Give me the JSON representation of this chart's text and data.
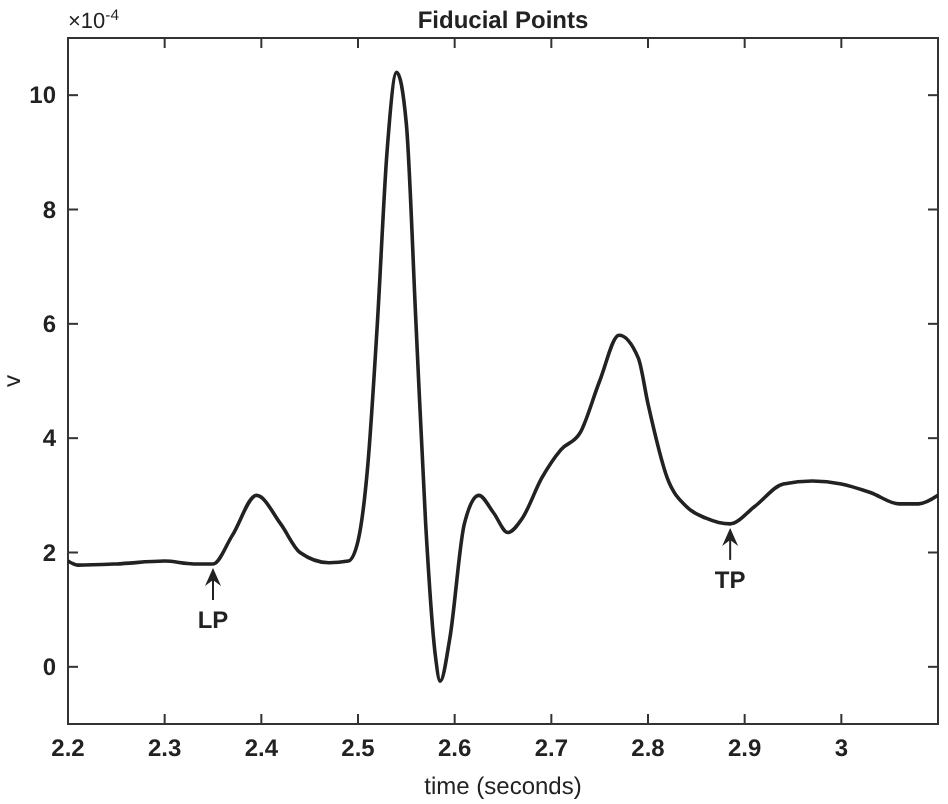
{
  "chart_data": {
    "type": "line",
    "title": "Fiducial Points",
    "xlabel": "time (seconds)",
    "ylabel": "v",
    "annotations": [
      "×10$^{-4}$",
      {
        "text": "LP",
        "x": 2.35,
        "y": 1.8
      },
      {
        "text": "TP",
        "x": 2.885,
        "y": 2.5
      }
    ],
    "xlim": [
      2.2,
      3.1
    ],
    "xticks": [
      2.2,
      2.3,
      2.4,
      2.5,
      2.6,
      2.7,
      2.8,
      2.9,
      3
    ],
    "ylim": [
      -1,
      11
    ],
    "yticks": [
      0,
      2,
      4,
      6,
      8,
      10
    ],
    "grid": false,
    "series": [
      {
        "color": "#222222",
        "x": [
          2.2,
          2.21,
          2.25,
          2.3,
          2.33,
          2.35,
          2.37,
          2.395,
          2.42,
          2.44,
          2.47,
          2.49,
          2.5,
          2.51,
          2.52,
          2.53,
          2.54,
          2.55,
          2.56,
          2.57,
          2.58,
          2.585,
          2.595,
          2.61,
          2.625,
          2.64,
          2.655,
          2.67,
          2.69,
          2.71,
          2.73,
          2.75,
          2.77,
          2.79,
          2.8,
          2.82,
          2.84,
          2.86,
          2.885,
          2.91,
          2.94,
          2.97,
          3.0,
          3.03,
          3.06,
          3.08,
          3.1
        ],
        "values": [
          1.85,
          1.78,
          1.8,
          1.85,
          1.8,
          1.8,
          2.3,
          3.0,
          2.5,
          2.0,
          1.82,
          1.85,
          2.2,
          3.5,
          6,
          9,
          10.4,
          9.5,
          6,
          2.5,
          0.2,
          -0.25,
          0.5,
          2.5,
          3.0,
          2.7,
          2.35,
          2.6,
          3.3,
          3.8,
          4.1,
          5.0,
          5.8,
          5.4,
          4.6,
          3.3,
          2.8,
          2.6,
          2.5,
          2.8,
          3.2,
          3.25,
          3.2,
          3.05,
          2.85,
          2.85,
          3.0
        ]
      }
    ]
  }
}
